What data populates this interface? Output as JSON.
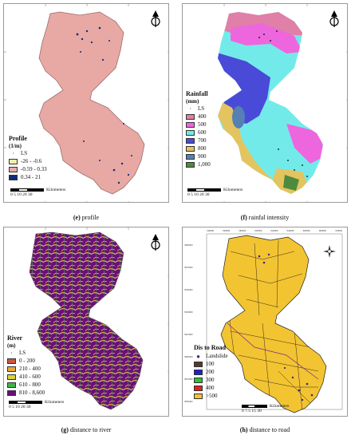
{
  "panels": {
    "e": {
      "caption_letter": "(e)",
      "caption_text": " profile",
      "legend_title": "Profile",
      "legend_unit": "(1/m)",
      "point_label": "LS",
      "classes": [
        {
          "label": "-26 - -0.6",
          "color": "#f1f1a8"
        },
        {
          "label": "-0.59 - 0.33",
          "color": "#e7aaa8"
        },
        {
          "label": "0.34 - 21",
          "color": "#0d2c7a"
        }
      ],
      "scale_ticks": "0 5 10    20    30",
      "scale_unit": "Kilometers"
    },
    "f": {
      "caption_letter": "(f)",
      "caption_text": " rainfal intensity",
      "legend_title": "Rainfall",
      "legend_unit": "(mm)",
      "point_label": "LS",
      "classes": [
        {
          "label": "400",
          "color": "#e07fa8"
        },
        {
          "label": "500",
          "color": "#ee66dd"
        },
        {
          "label": "600",
          "color": "#73eaea"
        },
        {
          "label": "700",
          "color": "#4a4ad8"
        },
        {
          "label": "800",
          "color": "#e3c45f"
        },
        {
          "label": "900",
          "color": "#5580b4"
        },
        {
          "label": "1,000",
          "color": "#4e8a3c"
        }
      ],
      "scale_ticks": "0 5 10    20    30",
      "scale_unit": "Kilometers"
    },
    "g": {
      "caption_letter": "(g)",
      "caption_text": " distance to river",
      "legend_title": "River",
      "legend_unit": "(m)",
      "point_label": "LS",
      "classes": [
        {
          "label": "0 - 200",
          "color": "#c8553d"
        },
        {
          "label": "210 - 400",
          "color": "#e8a838"
        },
        {
          "label": "410 - 600",
          "color": "#d6d43a"
        },
        {
          "label": "610 - 800",
          "color": "#43b34a"
        },
        {
          "label": "810 - 8,600",
          "color": "#6a0f7c"
        }
      ],
      "scale_ticks": "0 5 10    20    30",
      "scale_unit": "Kilometers"
    },
    "h": {
      "caption_letter": "(h)",
      "caption_text": " distance to road",
      "legend_title": "Dis to Road",
      "point_label": "Landslide",
      "classes": [
        {
          "label": "100",
          "color": "#5a3a2a"
        },
        {
          "label": "200",
          "color": "#1f1fd0"
        },
        {
          "label": "300",
          "color": "#2fbf2f"
        },
        {
          "label": "400",
          "color": "#e02020"
        },
        {
          "label": ">500",
          "color": "#f2c432"
        }
      ],
      "scale_ticks": "0  7.5  15     30",
      "scale_unit": "Kilometers",
      "coords_top": [
        "540000",
        "560000",
        "580000",
        "600000",
        "620000",
        "640000",
        "660000",
        "680000",
        "700000"
      ],
      "coords_left": [
        "3990000",
        "3970000",
        "3950000",
        "3930000",
        "3910000",
        "3890000",
        "3870000",
        "3850000"
      ]
    }
  },
  "colors": {
    "profile_fill": "#e8a8a4",
    "frame": "#9a9a9a"
  }
}
